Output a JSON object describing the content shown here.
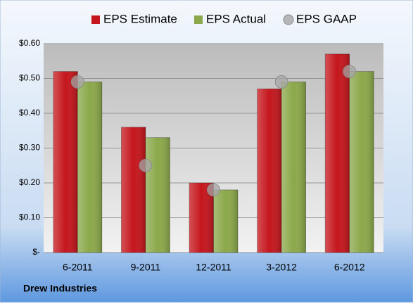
{
  "chart_data": {
    "type": "bar",
    "footer": "Drew Industries",
    "categories": [
      "6-2011",
      "9-2011",
      "12-2011",
      "3-2012",
      "6-2012"
    ],
    "series": [
      {
        "name": "EPS Estimate",
        "color": "#c4161c",
        "kind": "bar",
        "values": [
          0.52,
          0.36,
          0.2,
          0.47,
          0.57
        ]
      },
      {
        "name": "EPS Actual",
        "color": "#8ba84a",
        "kind": "bar",
        "values": [
          0.49,
          0.33,
          0.18,
          0.49,
          0.52
        ]
      },
      {
        "name": "EPS GAAP",
        "color": "#a6a6a6",
        "kind": "marker",
        "values": [
          0.49,
          0.25,
          0.18,
          0.49,
          0.52
        ]
      }
    ],
    "ylim": [
      0,
      0.6
    ],
    "yticks": [
      {
        "value": 0,
        "label": "$-"
      },
      {
        "value": 0.1,
        "label": "$0.10"
      },
      {
        "value": 0.2,
        "label": "$0.20"
      },
      {
        "value": 0.3,
        "label": "$0.30"
      },
      {
        "value": 0.4,
        "label": "$0.40"
      },
      {
        "value": 0.5,
        "label": "$0.50"
      },
      {
        "value": 0.6,
        "label": "$0.60"
      }
    ],
    "grid": true,
    "legend": "top"
  }
}
